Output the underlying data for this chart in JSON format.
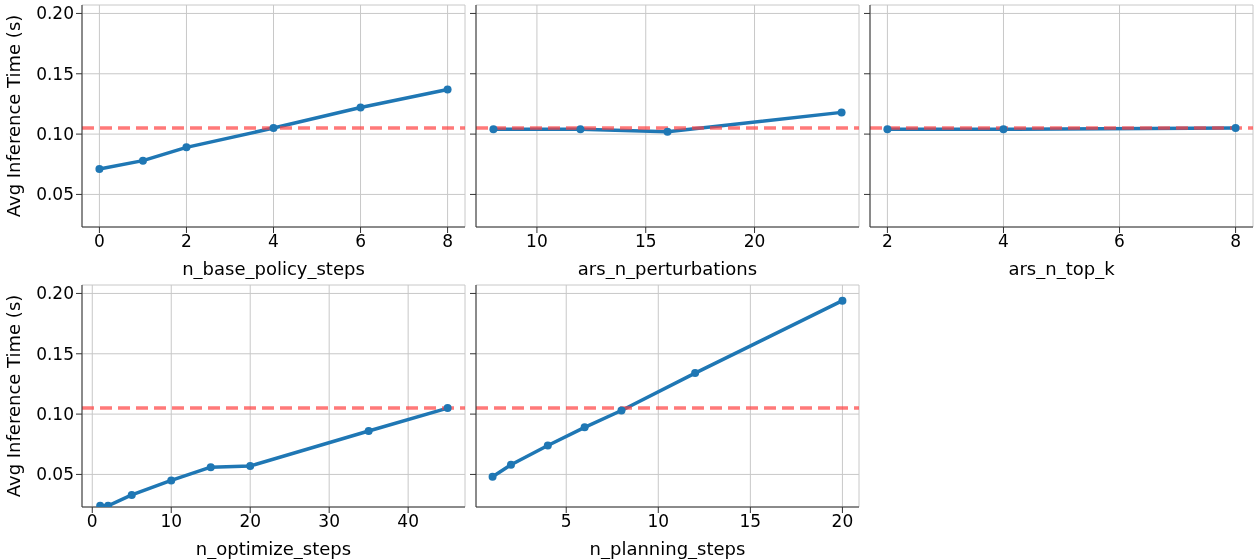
{
  "chart_data": [
    {
      "type": "line",
      "xlabel": "n_base_policy_steps",
      "ylabel": "Avg Inference Time (s)",
      "x": [
        0,
        1,
        2,
        4,
        6,
        8
      ],
      "series": [
        {
          "color": "#1f77b4",
          "values": [
            0.071,
            0.078,
            0.089,
            0.105,
            0.122,
            0.137
          ]
        }
      ],
      "xlim": [
        -0.4,
        8.4
      ],
      "xticks": [
        0,
        2,
        4,
        6,
        8
      ],
      "ylim": [
        0.023,
        0.207
      ],
      "yticks": [
        {
          "value": 0.05,
          "label": "0.05"
        },
        {
          "value": 0.1,
          "label": "0.10"
        },
        {
          "value": 0.15,
          "label": "0.15"
        },
        {
          "value": 0.2,
          "label": "0.20"
        }
      ],
      "ref_lines": [
        {
          "axis": "y",
          "value": 0.105,
          "color": "#ff4040",
          "line_style": "dashed"
        }
      ],
      "grid": true,
      "marker": "circle"
    },
    {
      "type": "line",
      "xlabel": "ars_n_perturbations",
      "x": [
        8,
        12,
        16,
        24
      ],
      "series": [
        {
          "color": "#1f77b4",
          "values": [
            0.104,
            0.104,
            0.102,
            0.118
          ]
        }
      ],
      "xlim": [
        7.2,
        24.8
      ],
      "xticks": [
        10,
        15,
        20
      ],
      "ylim": [
        0.023,
        0.207
      ],
      "yticks": [
        0.05,
        0.1,
        0.15,
        0.2
      ],
      "ref_lines": [
        {
          "axis": "y",
          "value": 0.105,
          "color": "#ff4040",
          "line_style": "dashed"
        }
      ],
      "grid": true,
      "marker": "circle",
      "tick_labels": "x"
    },
    {
      "type": "line",
      "xlabel": "ars_n_top_k",
      "x": [
        2,
        4,
        8
      ],
      "series": [
        {
          "color": "#1f77b4",
          "values": [
            0.104,
            0.104,
            0.105
          ]
        }
      ],
      "xlim": [
        1.7,
        8.3
      ],
      "xticks": [
        2,
        4,
        6,
        8
      ],
      "ylim": [
        0.023,
        0.207
      ],
      "yticks": [
        0.05,
        0.1,
        0.15,
        0.2
      ],
      "ref_lines": [
        {
          "axis": "y",
          "value": 0.105,
          "color": "#ff4040",
          "line_style": "dashed"
        }
      ],
      "grid": true,
      "marker": "circle",
      "tick_labels": "x"
    },
    {
      "type": "line",
      "xlabel": "n_optimize_steps",
      "ylabel": "Avg Inference Time (s)",
      "x": [
        1,
        2,
        5,
        10,
        15,
        20,
        35,
        45
      ],
      "series": [
        {
          "color": "#1f77b4",
          "values": [
            0.024,
            0.024,
            0.033,
            0.045,
            0.056,
            0.057,
            0.086,
            0.105
          ]
        }
      ],
      "xlim": [
        -1.3,
        47.2
      ],
      "xticks": [
        0,
        10,
        20,
        30,
        40
      ],
      "ylim": [
        0.023,
        0.207
      ],
      "yticks": [
        {
          "value": 0.05,
          "label": "0.05"
        },
        {
          "value": 0.1,
          "label": "0.10"
        },
        {
          "value": 0.15,
          "label": "0.15"
        },
        {
          "value": 0.2,
          "label": "0.20"
        }
      ],
      "ref_lines": [
        {
          "axis": "y",
          "value": 0.105,
          "color": "#ff4040",
          "line_style": "dashed"
        }
      ],
      "grid": true,
      "marker": "circle"
    },
    {
      "type": "line",
      "xlabel": "n_planning_steps",
      "x": [
        1,
        2,
        4,
        6,
        8,
        12,
        20
      ],
      "series": [
        {
          "color": "#1f77b4",
          "values": [
            0.048,
            0.058,
            0.074,
            0.089,
            0.103,
            0.134,
            0.194
          ]
        }
      ],
      "xlim": [
        0.1,
        20.9
      ],
      "xticks": [
        5,
        10,
        15,
        20
      ],
      "ylim": [
        0.023,
        0.207
      ],
      "yticks": [
        0.05,
        0.1,
        0.15,
        0.2
      ],
      "ref_lines": [
        {
          "axis": "y",
          "value": 0.105,
          "color": "#ff4040",
          "line_style": "dashed"
        }
      ],
      "grid": true,
      "marker": "circle",
      "tick_labels": "x"
    }
  ]
}
